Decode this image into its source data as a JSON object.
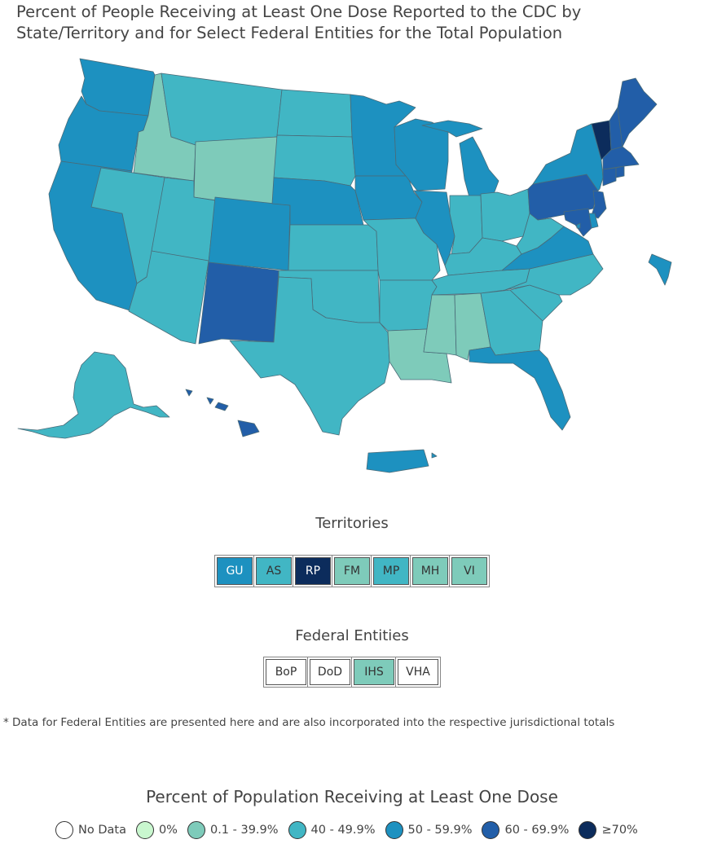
{
  "title": "Percent of People Receiving at Least One Dose Reported to the CDC by State/Territory and for Select Federal Entities for the Total Population",
  "colors": {
    "nodata": "#ffffff",
    "zero": "#c9f7cf",
    "c1": "#7ecbba",
    "c2": "#41b6c4",
    "c3": "#1d91c0",
    "c4": "#225ea8",
    "c5": "#0c2c5c",
    "border": "#4a6b78"
  },
  "territories": {
    "title": "Territories",
    "items": [
      {
        "label": "GU",
        "cls": "c3"
      },
      {
        "label": "AS",
        "cls": "c2"
      },
      {
        "label": "RP",
        "cls": "c5"
      },
      {
        "label": "FM",
        "cls": "c1"
      },
      {
        "label": "MP",
        "cls": "c2"
      },
      {
        "label": "MH",
        "cls": "c1"
      },
      {
        "label": "VI",
        "cls": "c1"
      }
    ]
  },
  "federal": {
    "title": "Federal Entities",
    "items": [
      {
        "label": "BoP",
        "cls": "nodata"
      },
      {
        "label": "DoD",
        "cls": "nodata"
      },
      {
        "label": "IHS",
        "cls": "c1"
      },
      {
        "label": "VHA",
        "cls": "nodata"
      }
    ]
  },
  "note": "* Data for Federal Entities are presented here and are also incorporated into the respective jurisdictional totals",
  "legend": {
    "title": "Percent of Population Receiving at Least One Dose",
    "items": [
      {
        "label": "No Data",
        "cls": "nodata"
      },
      {
        "label": "0%",
        "cls": "zero"
      },
      {
        "label": "0.1 - 39.9%",
        "cls": "c1"
      },
      {
        "label": "40 - 49.9%",
        "cls": "c2"
      },
      {
        "label": "50 - 59.9%",
        "cls": "c3"
      },
      {
        "label": "60 - 69.9%",
        "cls": "c4"
      },
      {
        "label": "≥70%",
        "cls": "c5"
      }
    ]
  },
  "regions": [
    {
      "id": "WA",
      "cls": "c3"
    },
    {
      "id": "OR",
      "cls": "c3"
    },
    {
      "id": "CA",
      "cls": "c3"
    },
    {
      "id": "ID",
      "cls": "c1"
    },
    {
      "id": "NV",
      "cls": "c2"
    },
    {
      "id": "MT",
      "cls": "c2"
    },
    {
      "id": "WY",
      "cls": "c1"
    },
    {
      "id": "UT",
      "cls": "c2"
    },
    {
      "id": "AZ",
      "cls": "c2"
    },
    {
      "id": "CO",
      "cls": "c3"
    },
    {
      "id": "NM",
      "cls": "c4"
    },
    {
      "id": "ND",
      "cls": "c2"
    },
    {
      "id": "SD",
      "cls": "c2"
    },
    {
      "id": "NE",
      "cls": "c3"
    },
    {
      "id": "KS",
      "cls": "c2"
    },
    {
      "id": "OK",
      "cls": "c2"
    },
    {
      "id": "TX",
      "cls": "c2"
    },
    {
      "id": "MN",
      "cls": "c3"
    },
    {
      "id": "IA",
      "cls": "c3"
    },
    {
      "id": "MO",
      "cls": "c2"
    },
    {
      "id": "AR",
      "cls": "c2"
    },
    {
      "id": "LA",
      "cls": "c1"
    },
    {
      "id": "WI",
      "cls": "c3"
    },
    {
      "id": "IL",
      "cls": "c3"
    },
    {
      "id": "MI",
      "cls": "c3"
    },
    {
      "id": "IN",
      "cls": "c2"
    },
    {
      "id": "OH",
      "cls": "c2"
    },
    {
      "id": "KY",
      "cls": "c2"
    },
    {
      "id": "TN",
      "cls": "c2"
    },
    {
      "id": "MS",
      "cls": "c1"
    },
    {
      "id": "AL",
      "cls": "c1"
    },
    {
      "id": "GA",
      "cls": "c2"
    },
    {
      "id": "FL",
      "cls": "c3"
    },
    {
      "id": "SC",
      "cls": "c2"
    },
    {
      "id": "NC",
      "cls": "c2"
    },
    {
      "id": "VA",
      "cls": "c3"
    },
    {
      "id": "WV",
      "cls": "c2"
    },
    {
      "id": "PA",
      "cls": "c4"
    },
    {
      "id": "NY",
      "cls": "c3"
    },
    {
      "id": "VT",
      "cls": "c5"
    },
    {
      "id": "NH",
      "cls": "c4"
    },
    {
      "id": "ME",
      "cls": "c4"
    },
    {
      "id": "MA",
      "cls": "c4"
    },
    {
      "id": "CT",
      "cls": "c4"
    },
    {
      "id": "RI",
      "cls": "c4"
    },
    {
      "id": "NJ",
      "cls": "c4"
    },
    {
      "id": "DE",
      "cls": "c3"
    },
    {
      "id": "MD",
      "cls": "c4"
    },
    {
      "id": "DC",
      "cls": "c3"
    },
    {
      "id": "AK",
      "cls": "c2"
    },
    {
      "id": "HI",
      "cls": "c4"
    },
    {
      "id": "PR",
      "cls": "c3"
    },
    {
      "id": "NYC",
      "cls": "c3"
    }
  ]
}
